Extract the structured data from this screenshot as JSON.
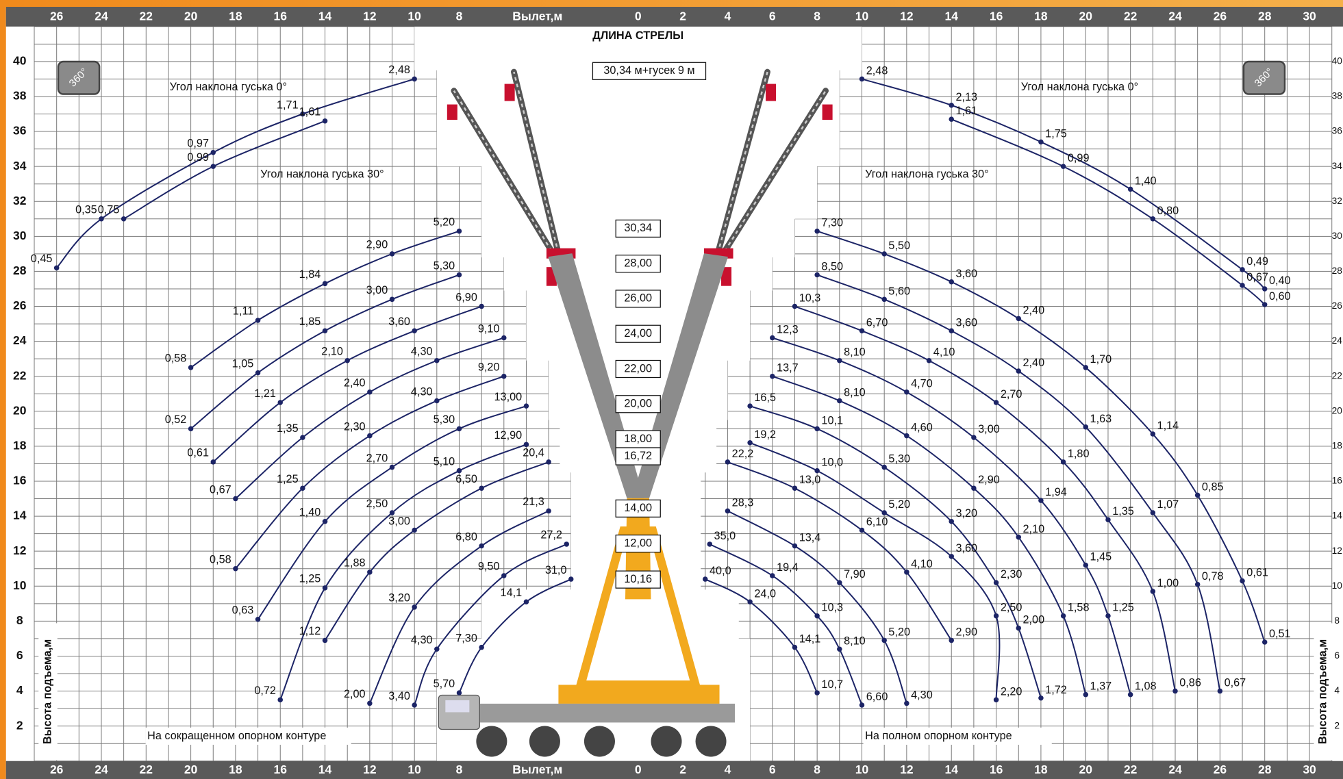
{
  "chart_data": {
    "type": "load-chart",
    "x_label": "Вылет,м",
    "y_label": "Высота подъема,м",
    "title": "ДЛИНА СТРЕЛЫ",
    "jib": "30,34 м+гусек 9 м",
    "rotation": "360°",
    "left_xlim": [
      0,
      27
    ],
    "right_xlim": [
      0,
      31
    ],
    "ylim": [
      0,
      42
    ],
    "left_xticks": [
      26,
      24,
      22,
      20,
      18,
      16,
      14,
      12,
      10,
      8
    ],
    "right_xticks": [
      0,
      2,
      4,
      6,
      8,
      10,
      12,
      14,
      16,
      18,
      20,
      22,
      24,
      26,
      28,
      30
    ],
    "yticks": [
      2,
      4,
      6,
      8,
      10,
      12,
      14,
      16,
      18,
      20,
      22,
      24,
      26,
      28,
      30,
      32,
      34,
      36,
      38,
      40
    ],
    "grid": true,
    "color": "#1c2466",
    "boom_lengths": [
      "30,34",
      "28,00",
      "26,00",
      "24,00",
      "22,00",
      "20,00",
      "18,00",
      "16,72",
      "14,00",
      "12,00",
      "10,16"
    ],
    "left": {
      "note": "На сокращенном опорном контуре",
      "jib_labels": [
        "Угол наклона гуська 0°",
        "Угол наклона гуська 30°"
      ],
      "curves": [
        {
          "points": [
            {
              "x": 10,
              "y": 39,
              "label": "2,48"
            },
            {
              "x": 15,
              "y": 37,
              "label": "1,71"
            },
            {
              "x": 19,
              "y": 34.8,
              "label": "0,97"
            },
            {
              "x": 24,
              "y": 31,
              "label": "0,35"
            },
            {
              "x": 26,
              "y": 28.2,
              "label": "0,45"
            }
          ]
        },
        {
          "points": [
            {
              "x": 14,
              "y": 36.6,
              "label": "1,61"
            },
            {
              "x": 19,
              "y": 34,
              "label": "0,99"
            },
            {
              "x": 23,
              "y": 31,
              "label": "0,75"
            }
          ]
        },
        {
          "points": [
            {
              "x": 8,
              "y": 30.3,
              "label": "5,20"
            },
            {
              "x": 11,
              "y": 29,
              "label": "2,90"
            },
            {
              "x": 14,
              "y": 27.3,
              "label": "1,84"
            },
            {
              "x": 17,
              "y": 25.2,
              "label": "1,11"
            },
            {
              "x": 20,
              "y": 22.5,
              "label": "0,58"
            }
          ]
        },
        {
          "points": [
            {
              "x": 8,
              "y": 27.8,
              "label": "5,30"
            },
            {
              "x": 11,
              "y": 26.4,
              "label": "3,00"
            },
            {
              "x": 14,
              "y": 24.6,
              "label": "1,85"
            },
            {
              "x": 17,
              "y": 22.2,
              "label": "1,05"
            },
            {
              "x": 20,
              "y": 19,
              "label": "0,52"
            }
          ]
        },
        {
          "points": [
            {
              "x": 7,
              "y": 26,
              "label": "6,90"
            },
            {
              "x": 10,
              "y": 24.6,
              "label": "3,60"
            },
            {
              "x": 13,
              "y": 22.9,
              "label": "2,10"
            },
            {
              "x": 16,
              "y": 20.5,
              "label": "1,21"
            },
            {
              "x": 19,
              "y": 17.1,
              "label": "0,61"
            }
          ]
        },
        {
          "points": [
            {
              "x": 6,
              "y": 24.2,
              "label": "9,10"
            },
            {
              "x": 9,
              "y": 22.9,
              "label": "4,30"
            },
            {
              "x": 12,
              "y": 21.1,
              "label": "2,40"
            },
            {
              "x": 15,
              "y": 18.5,
              "label": "1,35"
            },
            {
              "x": 18,
              "y": 15,
              "label": "0,67"
            }
          ]
        },
        {
          "points": [
            {
              "x": 6,
              "y": 22,
              "label": "9,20"
            },
            {
              "x": 9,
              "y": 20.6,
              "label": "4,30"
            },
            {
              "x": 12,
              "y": 18.6,
              "label": "2,30"
            },
            {
              "x": 15,
              "y": 15.6,
              "label": "1,25"
            },
            {
              "x": 18,
              "y": 11,
              "label": "0,58"
            }
          ]
        },
        {
          "points": [
            {
              "x": 5,
              "y": 20.3,
              "label": "13,00"
            },
            {
              "x": 8,
              "y": 19,
              "label": "5,30"
            },
            {
              "x": 11,
              "y": 16.8,
              "label": "2,70"
            },
            {
              "x": 14,
              "y": 13.7,
              "label": "1,40"
            },
            {
              "x": 17,
              "y": 8.1,
              "label": "0,63"
            }
          ]
        },
        {
          "points": [
            {
              "x": 5,
              "y": 18.1,
              "label": "12,90"
            },
            {
              "x": 8,
              "y": 16.6,
              "label": "5,10"
            },
            {
              "x": 11,
              "y": 14.2,
              "label": "2,50"
            },
            {
              "x": 14,
              "y": 9.9,
              "label": "1,25"
            },
            {
              "x": 16,
              "y": 3.5,
              "label": "0,72"
            }
          ]
        },
        {
          "points": [
            {
              "x": 4,
              "y": 17.1,
              "label": "20,4"
            },
            {
              "x": 7,
              "y": 15.6,
              "label": "6,50"
            },
            {
              "x": 10,
              "y": 13.2,
              "label": "3,00"
            },
            {
              "x": 12,
              "y": 10.8,
              "label": "1,88"
            },
            {
              "x": 14,
              "y": 6.9,
              "label": "1,12"
            }
          ]
        },
        {
          "points": [
            {
              "x": 4,
              "y": 14.3,
              "label": "21,3"
            },
            {
              "x": 7,
              "y": 12.3,
              "label": "6,80"
            },
            {
              "x": 10,
              "y": 8.8,
              "label": "3,20"
            },
            {
              "x": 12,
              "y": 3.3,
              "label": "2,00"
            }
          ]
        },
        {
          "points": [
            {
              "x": 3.2,
              "y": 12.4,
              "label": "27,2"
            },
            {
              "x": 6,
              "y": 10.6,
              "label": "9,50"
            },
            {
              "x": 9,
              "y": 6.4,
              "label": "4,30"
            },
            {
              "x": 10,
              "y": 3.2,
              "label": "3,40"
            }
          ]
        },
        {
          "points": [
            {
              "x": 3,
              "y": 10.4,
              "label": "31,0"
            },
            {
              "x": 5,
              "y": 9.1,
              "label": "14,1"
            },
            {
              "x": 7,
              "y": 6.5,
              "label": "7,30"
            },
            {
              "x": 8,
              "y": 3.9,
              "label": "5,70"
            }
          ]
        }
      ]
    },
    "right": {
      "note": "На полном опорном контуре",
      "jib_labels": [
        "Угол наклона гуська 0°",
        "Угол наклона гуська 30°"
      ],
      "curves": [
        {
          "points": [
            {
              "x": 10,
              "y": 39,
              "label": "2,48"
            },
            {
              "x": 14,
              "y": 37.5,
              "label": "2,13"
            },
            {
              "x": 18,
              "y": 35.4,
              "label": "1,75"
            },
            {
              "x": 22,
              "y": 32.7,
              "label": "1,40"
            },
            {
              "x": 27,
              "y": 28.1,
              "label": "0,49"
            },
            {
              "x": 28,
              "y": 27,
              "label": "0,40"
            }
          ]
        },
        {
          "points": [
            {
              "x": 14,
              "y": 36.7,
              "label": "1,61"
            },
            {
              "x": 19,
              "y": 34,
              "label": "0,99"
            },
            {
              "x": 23,
              "y": 31,
              "label": "0,80"
            },
            {
              "x": 27,
              "y": 27.2,
              "label": "0,67"
            },
            {
              "x": 28,
              "y": 26.1,
              "label": "0,60"
            }
          ]
        },
        {
          "points": [
            {
              "x": 8,
              "y": 30.3,
              "label": "7,30"
            },
            {
              "x": 11,
              "y": 29,
              "label": "5,50"
            },
            {
              "x": 14,
              "y": 27.4,
              "label": "3,60"
            },
            {
              "x": 17,
              "y": 25.3,
              "label": "2,40"
            },
            {
              "x": 20,
              "y": 22.5,
              "label": "1,70"
            },
            {
              "x": 23,
              "y": 18.7,
              "label": "1,14"
            },
            {
              "x": 25,
              "y": 15.2,
              "label": "0,85"
            },
            {
              "x": 27,
              "y": 10.3,
              "label": "0,61"
            },
            {
              "x": 28,
              "y": 6.8,
              "label": "0,51"
            }
          ]
        },
        {
          "points": [
            {
              "x": 8,
              "y": 27.8,
              "label": "8,50"
            },
            {
              "x": 11,
              "y": 26.4,
              "label": "5,60"
            },
            {
              "x": 14,
              "y": 24.6,
              "label": "3,60"
            },
            {
              "x": 17,
              "y": 22.3,
              "label": "2,40"
            },
            {
              "x": 20,
              "y": 19.1,
              "label": "1,63"
            },
            {
              "x": 23,
              "y": 14.2,
              "label": "1,07"
            },
            {
              "x": 25,
              "y": 10.1,
              "label": "0,78"
            },
            {
              "x": 26,
              "y": 4,
              "label": "0,67"
            }
          ]
        },
        {
          "points": [
            {
              "x": 7,
              "y": 26,
              "label": "10,3"
            },
            {
              "x": 10,
              "y": 24.6,
              "label": "6,70"
            },
            {
              "x": 13,
              "y": 22.9,
              "label": "4,10"
            },
            {
              "x": 16,
              "y": 20.5,
              "label": "2,70"
            },
            {
              "x": 19,
              "y": 17.1,
              "label": "1,80"
            },
            {
              "x": 21,
              "y": 13.8,
              "label": "1,35"
            },
            {
              "x": 23,
              "y": 9.7,
              "label": "1,00"
            },
            {
              "x": 24,
              "y": 4,
              "label": "0,86"
            }
          ]
        },
        {
          "points": [
            {
              "x": 6,
              "y": 24.2,
              "label": "12,3"
            },
            {
              "x": 9,
              "y": 22.9,
              "label": "8,10"
            },
            {
              "x": 12,
              "y": 21.1,
              "label": "4,70"
            },
            {
              "x": 15,
              "y": 18.5,
              "label": "3,00"
            },
            {
              "x": 18,
              "y": 14.9,
              "label": "1,94"
            },
            {
              "x": 20,
              "y": 11.2,
              "label": "1,45"
            },
            {
              "x": 21,
              "y": 8.3,
              "label": "1,25"
            },
            {
              "x": 22,
              "y": 3.8,
              "label": "1,08"
            }
          ]
        },
        {
          "points": [
            {
              "x": 6,
              "y": 22,
              "label": "13,7"
            },
            {
              "x": 9,
              "y": 20.6,
              "label": "8,10"
            },
            {
              "x": 12,
              "y": 18.6,
              "label": "4,60"
            },
            {
              "x": 15,
              "y": 15.6,
              "label": "2,90"
            },
            {
              "x": 17,
              "y": 12.8,
              "label": "2,10"
            },
            {
              "x": 19,
              "y": 8.3,
              "label": "1,58"
            },
            {
              "x": 20,
              "y": 3.8,
              "label": "1,37"
            }
          ]
        },
        {
          "points": [
            {
              "x": 5,
              "y": 20.3,
              "label": "16,5"
            },
            {
              "x": 8,
              "y": 19,
              "label": "10,1"
            },
            {
              "x": 11,
              "y": 16.8,
              "label": "5,30"
            },
            {
              "x": 14,
              "y": 13.7,
              "label": "3,20"
            },
            {
              "x": 16,
              "y": 10.2,
              "label": "2,30"
            },
            {
              "x": 17,
              "y": 7.6,
              "label": "2,00"
            },
            {
              "x": 18,
              "y": 3.6,
              "label": "1,72"
            }
          ]
        },
        {
          "points": [
            {
              "x": 5,
              "y": 18.2,
              "label": "19,2"
            },
            {
              "x": 8,
              "y": 16.6,
              "label": "10,0"
            },
            {
              "x": 11,
              "y": 14.2,
              "label": "5,20"
            },
            {
              "x": 14,
              "y": 11.7,
              "label": "3,60"
            },
            {
              "x": 16,
              "y": 8.3,
              "label": "2,50"
            },
            {
              "x": 16,
              "y": 3.5,
              "label": "2,20"
            }
          ]
        },
        {
          "points": [
            {
              "x": 4,
              "y": 17.1,
              "label": "22,2"
            },
            {
              "x": 7,
              "y": 15.6,
              "label": "13,0"
            },
            {
              "x": 10,
              "y": 13.2,
              "label": "6,10"
            },
            {
              "x": 12,
              "y": 10.8,
              "label": "4,10"
            },
            {
              "x": 14,
              "y": 6.9,
              "label": "2,90"
            }
          ]
        },
        {
          "points": [
            {
              "x": 4,
              "y": 14.3,
              "label": "28,3"
            },
            {
              "x": 7,
              "y": 12.3,
              "label": "13,4"
            },
            {
              "x": 9,
              "y": 10.2,
              "label": "7,90"
            },
            {
              "x": 11,
              "y": 6.9,
              "label": "5,20"
            },
            {
              "x": 12,
              "y": 3.3,
              "label": "4,30"
            }
          ]
        },
        {
          "points": [
            {
              "x": 3.2,
              "y": 12.4,
              "label": "35,0"
            },
            {
              "x": 6,
              "y": 10.6,
              "label": "19,4"
            },
            {
              "x": 8,
              "y": 8.3,
              "label": "10,3"
            },
            {
              "x": 9,
              "y": 6.4,
              "label": "8,10"
            },
            {
              "x": 10,
              "y": 3.2,
              "label": "6,60"
            }
          ]
        },
        {
          "points": [
            {
              "x": 3,
              "y": 10.4,
              "label": "40,0"
            },
            {
              "x": 5,
              "y": 9.1,
              "label": "24,0"
            },
            {
              "x": 7,
              "y": 6.5,
              "label": "14,1"
            },
            {
              "x": 8,
              "y": 3.9,
              "label": "10,7"
            }
          ]
        }
      ]
    }
  }
}
